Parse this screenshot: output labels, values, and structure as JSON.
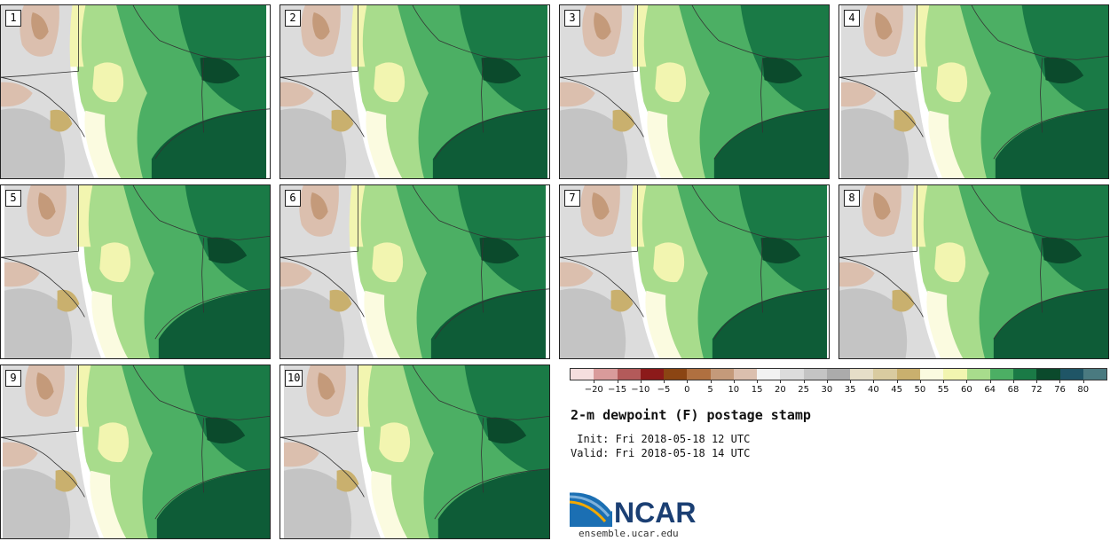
{
  "panels": [
    {
      "label": "1"
    },
    {
      "label": "2"
    },
    {
      "label": "3"
    },
    {
      "label": "4"
    },
    {
      "label": "5"
    },
    {
      "label": "6"
    },
    {
      "label": "7"
    },
    {
      "label": "8"
    },
    {
      "label": "9"
    },
    {
      "label": "10"
    }
  ],
  "colorbar": {
    "ticks": [
      "−20",
      "−15",
      "−10",
      "−5",
      "0",
      "5",
      "10",
      "15",
      "20",
      "25",
      "30",
      "35",
      "40",
      "45",
      "50",
      "55",
      "60",
      "64",
      "68",
      "72",
      "76",
      "80"
    ],
    "colors": [
      "#f5dede",
      "#d99b9b",
      "#b35a5a",
      "#8c1a1a",
      "#8b4513",
      "#b07040",
      "#c49a7a",
      "#dbbfae",
      "#f2f2f2",
      "#dcdcdc",
      "#c4c4c4",
      "#ababab",
      "#e6dec8",
      "#d9cba0",
      "#c9b06e",
      "#fbfbe0",
      "#f2f5b0",
      "#a8dc8c",
      "#4caf64",
      "#1a7a46",
      "#0b4a2c",
      "#1f5566",
      "#4a7a80"
    ]
  },
  "colors": {
    "accent_ncar_blue": "#1b3f73",
    "map_land_dark_green": "#1a7a46",
    "map_gulf_green": "#0e5c37"
  },
  "title": "2-m dewpoint (F) postage stamp",
  "init": " Init: Fri 2018-05-18 12 UTC",
  "valid": "Valid: Fri 2018-05-18 14 UTC",
  "logo": {
    "text": "NCAR"
  },
  "site": "ensemble.ucar.edu"
}
